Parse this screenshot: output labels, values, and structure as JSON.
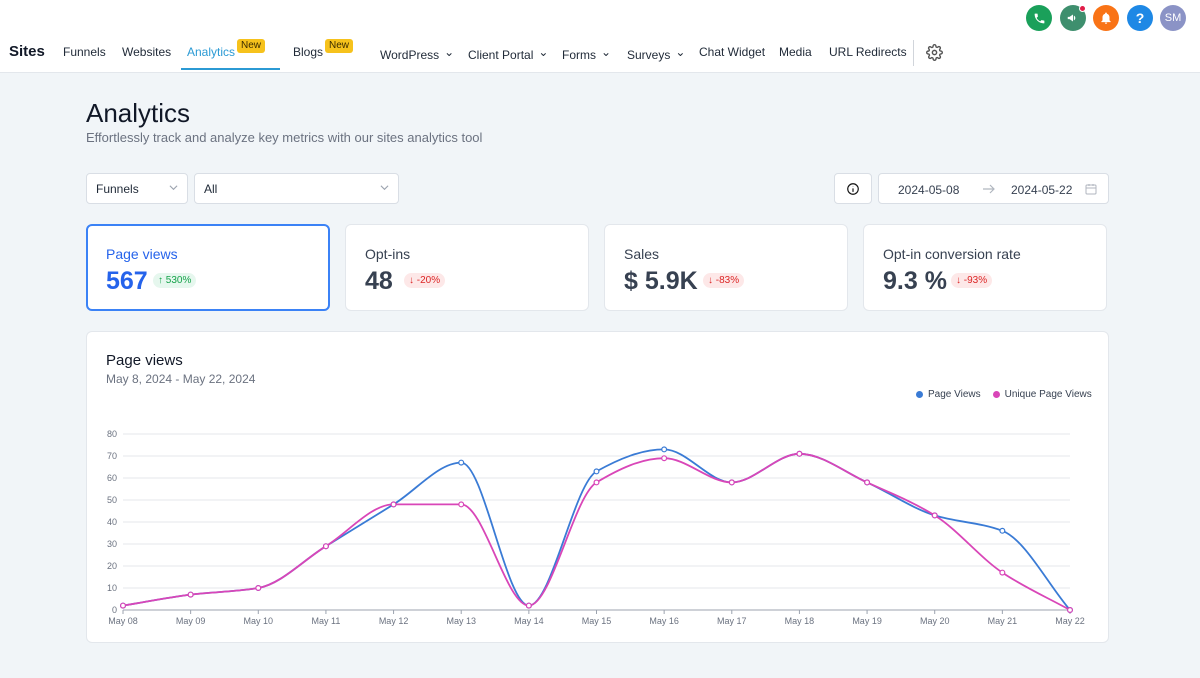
{
  "brand": "Sites",
  "nav": {
    "items": [
      {
        "label": "Funnels"
      },
      {
        "label": "Websites"
      },
      {
        "label": "Analytics",
        "badge": "New",
        "active": true
      },
      {
        "label": "Blogs",
        "badge": "New"
      },
      {
        "label": "WordPress",
        "dropdown": true
      },
      {
        "label": "Client Portal",
        "dropdown": true
      },
      {
        "label": "Forms",
        "dropdown": true
      },
      {
        "label": "Surveys",
        "dropdown": true
      },
      {
        "label": "Chat Widget"
      },
      {
        "label": "Media"
      },
      {
        "label": "URL Redirects"
      }
    ],
    "settings_icon": "gear-icon"
  },
  "header_actions": {
    "phone_icon": "phone-icon",
    "announcement_icon": "megaphone-icon",
    "bell_icon": "bell-icon",
    "help_label": "?",
    "avatar_initials": "SM",
    "colors": {
      "phone": "#1aa05a",
      "announce": "#3e8f6e",
      "bell": "#f97316",
      "help": "#1e88e5",
      "avatar": "#8b93c6"
    }
  },
  "page": {
    "title": "Analytics",
    "subtitle": "Effortlessly track and analyze key metrics with our sites analytics tool"
  },
  "filters": {
    "type_value": "Funnels",
    "scope_value": "All",
    "date_start": "2024-05-08",
    "date_end": "2024-05-22"
  },
  "stats": [
    {
      "label": "Page views",
      "value": "567",
      "change": "530%",
      "direction": "up",
      "active": true
    },
    {
      "label": "Opt-ins",
      "value": "48",
      "change": "-20%",
      "direction": "down"
    },
    {
      "label": "Sales",
      "value": "$ 5.9K",
      "change": "-83%",
      "direction": "down"
    },
    {
      "label": "Opt-in conversion rate",
      "value": "9.3 %",
      "change": "-93%",
      "direction": "down"
    }
  ],
  "chart": {
    "title": "Page views",
    "range": "May 8, 2024 - May 22, 2024"
  },
  "chart_data": {
    "type": "line",
    "x": [
      "May 08",
      "May 09",
      "May 10",
      "May 11",
      "May 12",
      "May 13",
      "May 14",
      "May 15",
      "May 16",
      "May 17",
      "May 18",
      "May 19",
      "May 20",
      "May 21",
      "May 22"
    ],
    "series": [
      {
        "name": "Page Views",
        "color": "#3a7bd5",
        "values": [
          2,
          7,
          10,
          29,
          48,
          67,
          2,
          63,
          73,
          58,
          71,
          58,
          43,
          36,
          0
        ]
      },
      {
        "name": "Unique Page Views",
        "color": "#d946b8",
        "values": [
          2,
          7,
          10,
          29,
          48,
          48,
          2,
          58,
          69,
          58,
          71,
          58,
          43,
          17,
          0
        ]
      }
    ],
    "ylim": [
      0,
      80
    ],
    "yticks": [
      0,
      10,
      20,
      30,
      40,
      50,
      60,
      70,
      80
    ],
    "grid": true,
    "legend": "top-right"
  }
}
